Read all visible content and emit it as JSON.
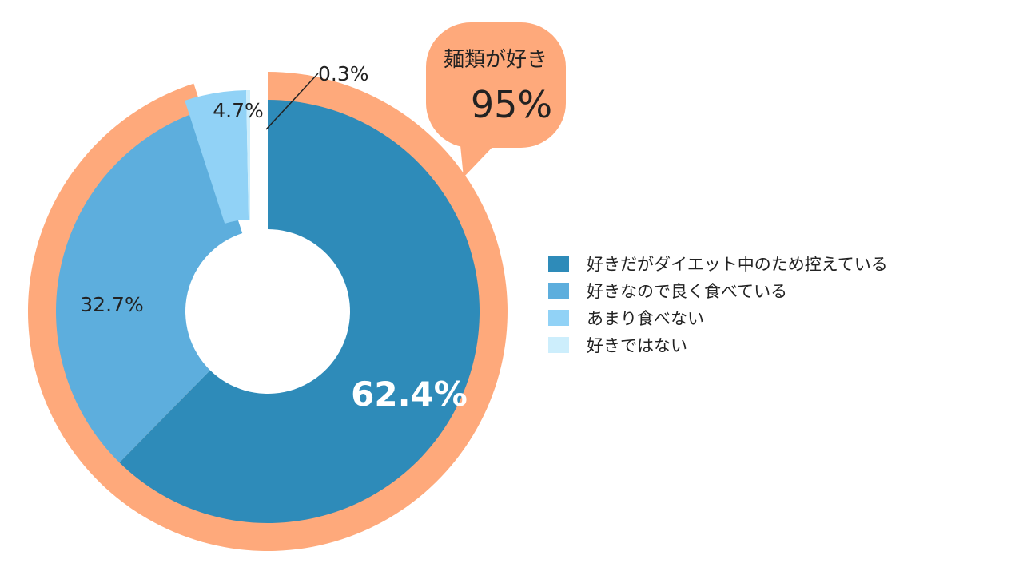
{
  "chart_data": {
    "type": "pie",
    "style": "donut",
    "slices": [
      {
        "label": "好きだがダイエット中のため控えている",
        "value": 62.4,
        "value_label": "62.4%",
        "color": "#2e8bb9"
      },
      {
        "label": "好きなので良く食べている",
        "value": 32.7,
        "value_label": "32.7%",
        "color": "#5daedd"
      },
      {
        "label": "あまり食べない",
        "value": 4.7,
        "value_label": "4.7%",
        "color": "#91d2f6"
      },
      {
        "label": "好きではない",
        "value": 0.3,
        "value_label": "0.3%",
        "color": "#cdeefc"
      }
    ],
    "highlight": {
      "color": "#fea97b"
    },
    "legend_position": "right"
  },
  "callout": {
    "title": "麺類が好き",
    "value": "95%"
  }
}
